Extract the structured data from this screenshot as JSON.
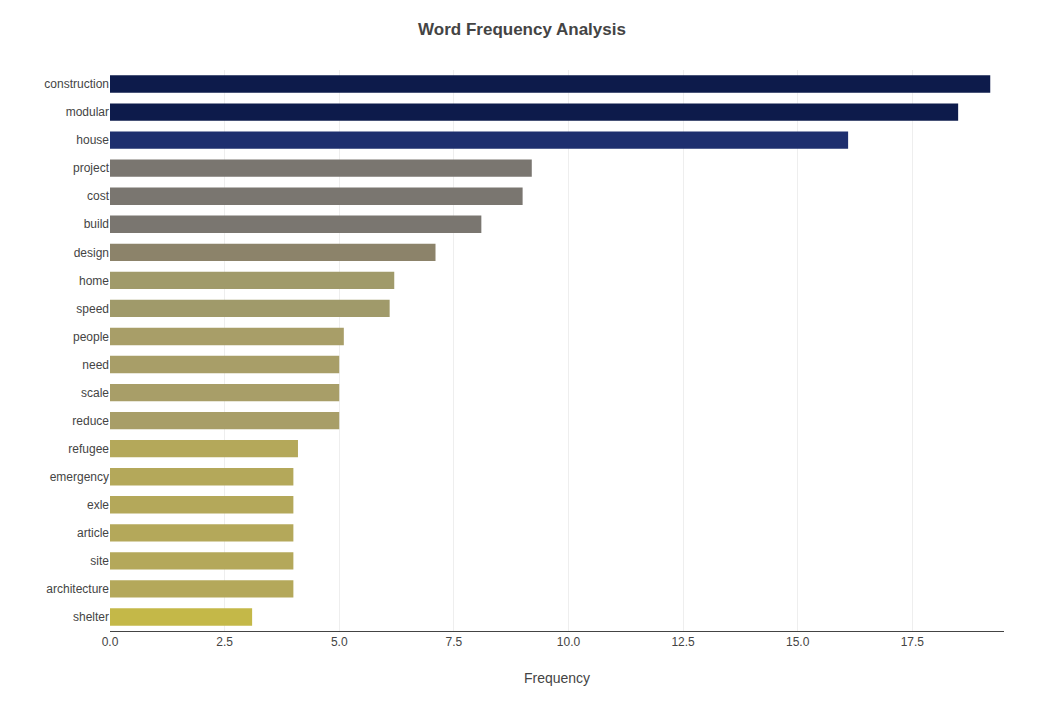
{
  "chart_data": {
    "type": "bar",
    "orientation": "horizontal",
    "title": "Word Frequency Analysis",
    "xlabel": "Frequency",
    "categories": [
      "construction",
      "modular",
      "house",
      "project",
      "cost",
      "build",
      "design",
      "home",
      "speed",
      "people",
      "need",
      "scale",
      "reduce",
      "refugee",
      "emergency",
      "exle",
      "article",
      "site",
      "architecture",
      "shelter"
    ],
    "values": [
      19.2,
      18.5,
      16.1,
      9.2,
      9.0,
      8.1,
      7.1,
      6.2,
      6.1,
      5.1,
      5.0,
      5.0,
      5.0,
      4.1,
      4.0,
      4.0,
      4.0,
      4.0,
      4.0,
      3.1
    ],
    "colors": [
      "#0d1b4b",
      "#0d1b4b",
      "#1e2f6e",
      "#7a7670",
      "#7a7670",
      "#7a7670",
      "#8c836a",
      "#a09a6a",
      "#a09a6a",
      "#a89e68",
      "#a89e68",
      "#a89e68",
      "#a89e68",
      "#b4a85a",
      "#b4a85a",
      "#b4a85a",
      "#b4a85a",
      "#b4a85a",
      "#b4a85a",
      "#c4b848"
    ],
    "xlim": [
      0,
      19.5
    ],
    "xticks": [
      {
        "value": 0,
        "label": "0.0"
      },
      2.5,
      {
        "value": 5,
        "label": "5.0"
      },
      7.5,
      {
        "value": 10,
        "label": "10.0"
      },
      12.5,
      {
        "value": 15,
        "label": "15.0"
      },
      17.5
    ],
    "grid": true
  }
}
